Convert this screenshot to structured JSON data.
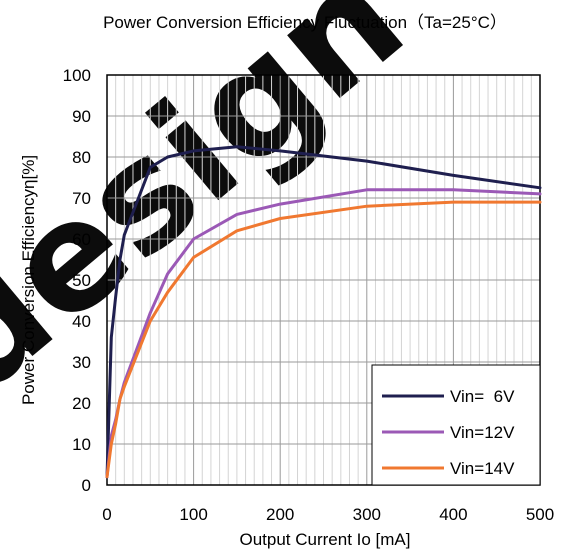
{
  "chart_data": {
    "type": "line",
    "title": "Power Conversion Efficiency Fluctuation（Ta=25°C）",
    "xlabel": "Output Current Io [mA]",
    "ylabel": "Power Conversion Efficiencyη[%]",
    "xlim": [
      0,
      500
    ],
    "ylim": [
      0,
      100
    ],
    "x_ticks": [
      "0",
      "100",
      "200",
      "300",
      "400",
      "500"
    ],
    "y_ticks": [
      "0",
      "10",
      "20",
      "30",
      "40",
      "50",
      "60",
      "70",
      "80",
      "90",
      "100"
    ],
    "grid": true,
    "legend_position": "bottom-right",
    "series": [
      {
        "name": "Vin=  6V",
        "color": "#1f1f4f",
        "x": [
          0,
          5,
          10,
          15,
          20,
          50,
          70,
          100,
          150,
          200,
          300,
          400,
          500
        ],
        "y": [
          2,
          36,
          46,
          55,
          61,
          77.5,
          80,
          81.5,
          82.5,
          81.5,
          79,
          75.5,
          72.5
        ]
      },
      {
        "name": "Vin=12V",
        "color": "#9b59b6",
        "x": [
          0,
          5,
          10,
          15,
          20,
          50,
          70,
          100,
          150,
          200,
          300,
          400,
          500
        ],
        "y": [
          2,
          12,
          16,
          21,
          25,
          42,
          51.5,
          60,
          66,
          68.5,
          72,
          72,
          71
        ]
      },
      {
        "name": "Vin=14V",
        "color": "#f07830",
        "x": [
          0,
          5,
          10,
          15,
          20,
          50,
          70,
          100,
          150,
          200,
          300,
          400,
          500
        ],
        "y": [
          2,
          10,
          15,
          21,
          24,
          40,
          47,
          55.5,
          62,
          65,
          68,
          69,
          69
        ]
      }
    ]
  },
  "watermark": {
    "text": "design"
  }
}
